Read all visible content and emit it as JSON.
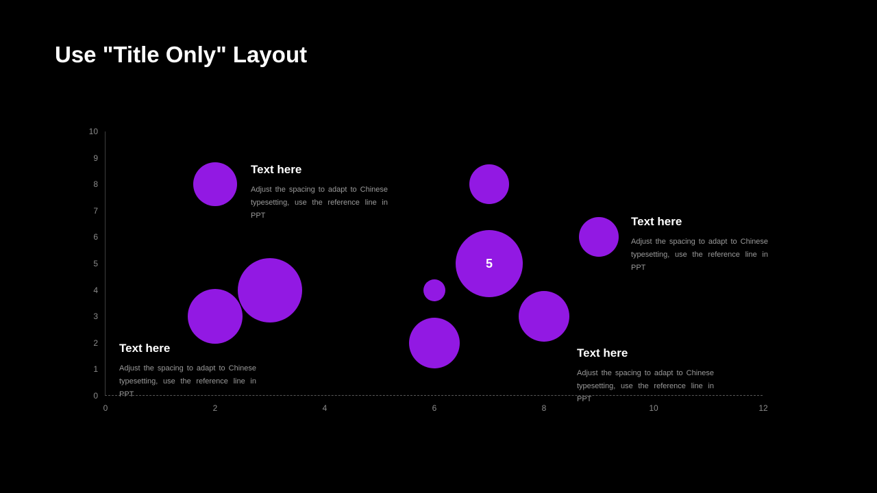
{
  "slide": {
    "title": "Use \"Title Only\" Layout",
    "background_color": "#000000",
    "title_color": "#ffffff"
  },
  "chart_data": {
    "type": "scatter",
    "variant": "bubble",
    "title": "",
    "xlabel": "",
    "ylabel": "",
    "xlim": [
      0,
      12
    ],
    "ylim": [
      0,
      10
    ],
    "x_ticks": [
      0,
      2,
      4,
      6,
      8,
      10,
      12
    ],
    "y_ticks": [
      0,
      1,
      2,
      3,
      4,
      5,
      6,
      7,
      8,
      9,
      10
    ],
    "grid": false,
    "legend": false,
    "bubble_color": "#9219E3",
    "tick_color": "#8b8b8b",
    "points": [
      {
        "x": 2,
        "y": 8,
        "r": 32,
        "label": ""
      },
      {
        "x": 2,
        "y": 3,
        "r": 40,
        "label": ""
      },
      {
        "x": 3,
        "y": 4,
        "r": 47,
        "label": ""
      },
      {
        "x": 6,
        "y": 4,
        "r": 16,
        "label": ""
      },
      {
        "x": 6,
        "y": 2,
        "r": 37,
        "label": ""
      },
      {
        "x": 7,
        "y": 8,
        "r": 29,
        "label": ""
      },
      {
        "x": 7,
        "y": 5,
        "r": 49,
        "label": "5"
      },
      {
        "x": 8,
        "y": 3,
        "r": 37,
        "label": ""
      },
      {
        "x": 9,
        "y": 6,
        "r": 29,
        "label": ""
      }
    ]
  },
  "annotations": [
    {
      "heading": "Text here",
      "line1": "Adjust the spacing to adapt to Chinese",
      "line2": "typesetting, use the reference line in PPT"
    },
    {
      "heading": "Text here",
      "line1": "Adjust the spacing to adapt to Chinese",
      "line2": "typesetting, use the reference line in PPT"
    },
    {
      "heading": "Text here",
      "line1": "Adjust the spacing to adapt to Chinese",
      "line2": "typesetting, use the reference line in PPT"
    },
    {
      "heading": "Text here",
      "line1": "Adjust the spacing to adapt to Chinese",
      "line2": "typesetting, use the reference line in PPT"
    }
  ]
}
